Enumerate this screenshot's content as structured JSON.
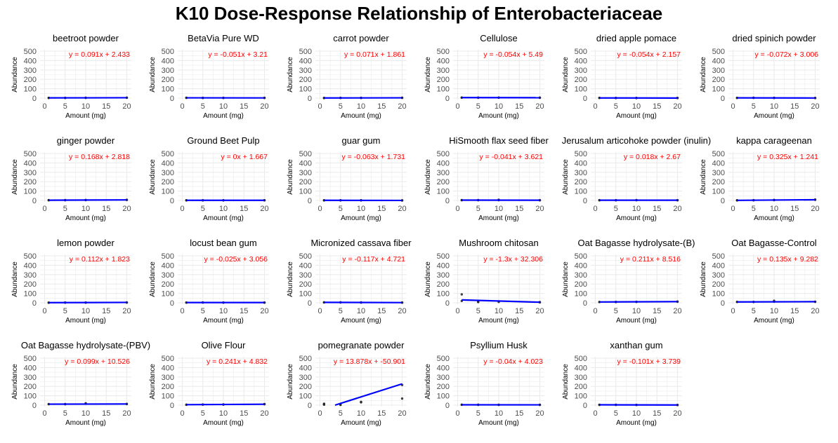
{
  "title": "K10 Dose-Response Relationship of Enterobacteriaceae",
  "colors": {
    "fit_line": "#0000ff",
    "equation": "#ff0000",
    "points": "#222222",
    "grid": "#ebebeb"
  },
  "chart_data": {
    "type": "scatter",
    "layout": "facet-grid",
    "xlabel": "Amount (mg)",
    "ylabel": "Abundance",
    "xlim": [
      0,
      20
    ],
    "ylim": [
      0,
      500
    ],
    "xticks": [
      0,
      5,
      10,
      15,
      20
    ],
    "yticks": [
      0,
      100,
      200,
      300,
      400,
      500
    ],
    "grid": true,
    "legend": "none",
    "facets": [
      {
        "name": "beetroot powder",
        "equation": "y = 0.091x + 2.433",
        "slope": 0.091,
        "intercept": 2.433,
        "points": [
          [
            1,
            2
          ],
          [
            1,
            3
          ],
          [
            5,
            3
          ],
          [
            5,
            2
          ],
          [
            10,
            3
          ],
          [
            10,
            4
          ],
          [
            20,
            4
          ],
          [
            20,
            5
          ]
        ]
      },
      {
        "name": "BetaVia Pure WD",
        "equation": "y = -0.051x + 3.21",
        "slope": -0.051,
        "intercept": 3.21,
        "points": [
          [
            1,
            3
          ],
          [
            1,
            4
          ],
          [
            5,
            3
          ],
          [
            5,
            2
          ],
          [
            10,
            3
          ],
          [
            10,
            2
          ],
          [
            20,
            2
          ],
          [
            20,
            3
          ]
        ]
      },
      {
        "name": "carrot powder",
        "equation": "y = 0.071x + 1.861",
        "slope": 0.071,
        "intercept": 1.861,
        "points": [
          [
            1,
            2
          ],
          [
            1,
            1
          ],
          [
            5,
            2
          ],
          [
            5,
            3
          ],
          [
            10,
            2
          ],
          [
            10,
            3
          ],
          [
            20,
            3
          ],
          [
            20,
            4
          ]
        ]
      },
      {
        "name": "Cellulose",
        "equation": "y = -0.054x + 5.49",
        "slope": -0.054,
        "intercept": 5.49,
        "points": [
          [
            1,
            5
          ],
          [
            1,
            6
          ],
          [
            5,
            6
          ],
          [
            5,
            4
          ],
          [
            10,
            5
          ],
          [
            10,
            6
          ],
          [
            20,
            4
          ],
          [
            20,
            5
          ]
        ]
      },
      {
        "name": "dried apple pomace",
        "equation": "y = -0.054x + 2.157",
        "slope": -0.054,
        "intercept": 2.157,
        "points": [
          [
            1,
            2
          ],
          [
            1,
            3
          ],
          [
            5,
            2
          ],
          [
            5,
            1
          ],
          [
            10,
            2
          ],
          [
            10,
            1
          ],
          [
            20,
            1
          ],
          [
            20,
            2
          ]
        ]
      },
      {
        "name": "dried spinich powder",
        "equation": "y = -0.072x + 3.006",
        "slope": -0.072,
        "intercept": 3.006,
        "points": [
          [
            1,
            3
          ],
          [
            1,
            2
          ],
          [
            5,
            3
          ],
          [
            5,
            4
          ],
          [
            10,
            2
          ],
          [
            10,
            3
          ],
          [
            20,
            2
          ],
          [
            20,
            1
          ]
        ]
      },
      {
        "name": "ginger powder",
        "equation": "y = 0.168x + 2.818",
        "slope": 0.168,
        "intercept": 2.818,
        "points": [
          [
            1,
            2
          ],
          [
            1,
            4
          ],
          [
            5,
            4
          ],
          [
            5,
            3
          ],
          [
            10,
            5
          ],
          [
            10,
            4
          ],
          [
            20,
            6
          ],
          [
            20,
            7
          ]
        ]
      },
      {
        "name": "Ground Beet Pulp",
        "equation": "y = 0x + 1.667",
        "slope": 0,
        "intercept": 1.667,
        "points": [
          [
            1,
            2
          ],
          [
            1,
            1
          ],
          [
            5,
            2
          ],
          [
            5,
            1
          ],
          [
            10,
            2
          ],
          [
            10,
            1
          ],
          [
            20,
            2
          ],
          [
            20,
            2
          ]
        ]
      },
      {
        "name": "guar gum",
        "equation": "y = -0.063x + 1.731",
        "slope": -0.063,
        "intercept": 1.731,
        "points": [
          [
            1,
            2
          ],
          [
            1,
            1
          ],
          [
            5,
            2
          ],
          [
            5,
            1
          ],
          [
            10,
            1
          ],
          [
            10,
            2
          ],
          [
            20,
            0
          ],
          [
            20,
            1
          ]
        ]
      },
      {
        "name": "HiSmooth flax seed fiber",
        "equation": "y = -0.041x + 3.621",
        "slope": -0.041,
        "intercept": 3.621,
        "points": [
          [
            1,
            3
          ],
          [
            1,
            4
          ],
          [
            5,
            3
          ],
          [
            5,
            4
          ],
          [
            10,
            8
          ],
          [
            10,
            3
          ],
          [
            20,
            2
          ],
          [
            20,
            3
          ]
        ]
      },
      {
        "name": "Jerusalum articohoke powder (inulin)",
        "equation": "y = 0.018x + 2.67",
        "slope": 0.018,
        "intercept": 2.67,
        "points": [
          [
            1,
            3
          ],
          [
            1,
            2
          ],
          [
            5,
            3
          ],
          [
            5,
            2
          ],
          [
            10,
            3
          ],
          [
            10,
            4
          ],
          [
            20,
            3
          ],
          [
            20,
            2
          ]
        ]
      },
      {
        "name": "kappa carageenan",
        "equation": "y = 0.325x + 1.241",
        "slope": 0.325,
        "intercept": 1.241,
        "points": [
          [
            1,
            2
          ],
          [
            1,
            1
          ],
          [
            5,
            3
          ],
          [
            5,
            2
          ],
          [
            10,
            4
          ],
          [
            10,
            6
          ],
          [
            20,
            7
          ],
          [
            20,
            10
          ]
        ]
      },
      {
        "name": "lemon powder",
        "equation": "y = 0.112x + 1.823",
        "slope": 0.112,
        "intercept": 1.823,
        "points": [
          [
            1,
            2
          ],
          [
            1,
            1
          ],
          [
            5,
            2
          ],
          [
            5,
            3
          ],
          [
            10,
            3
          ],
          [
            10,
            2
          ],
          [
            20,
            4
          ],
          [
            20,
            3
          ]
        ]
      },
      {
        "name": "locust bean gum",
        "equation": "y = -0.025x + 3.056",
        "slope": -0.025,
        "intercept": 3.056,
        "points": [
          [
            1,
            3
          ],
          [
            1,
            2
          ],
          [
            5,
            3
          ],
          [
            5,
            4
          ],
          [
            10,
            3
          ],
          [
            10,
            2
          ],
          [
            20,
            2
          ],
          [
            20,
            3
          ]
        ]
      },
      {
        "name": "Micronized cassava fiber",
        "equation": "y = -0.117x + 4.721",
        "slope": -0.117,
        "intercept": 4.721,
        "points": [
          [
            1,
            5
          ],
          [
            1,
            4
          ],
          [
            5,
            4
          ],
          [
            5,
            5
          ],
          [
            10,
            3
          ],
          [
            10,
            4
          ],
          [
            20,
            2
          ],
          [
            20,
            3
          ]
        ]
      },
      {
        "name": "Mushroom chitosan",
        "equation": "y = -1.3x + 32.306",
        "slope": -1.3,
        "intercept": 32.306,
        "points": [
          [
            1,
            90
          ],
          [
            1,
            20
          ],
          [
            5,
            8
          ],
          [
            5,
            12
          ],
          [
            10,
            15
          ],
          [
            10,
            10
          ],
          [
            20,
            8
          ],
          [
            20,
            5
          ]
        ]
      },
      {
        "name": "Oat Bagasse hydrolysate-(B)",
        "equation": "y = 0.211x + 8.516",
        "slope": 0.211,
        "intercept": 8.516,
        "points": [
          [
            1,
            8
          ],
          [
            1,
            9
          ],
          [
            5,
            10
          ],
          [
            5,
            8
          ],
          [
            10,
            10
          ],
          [
            10,
            11
          ],
          [
            20,
            12
          ],
          [
            20,
            13
          ]
        ]
      },
      {
        "name": "Oat Bagasse-Control",
        "equation": "y = 0.135x + 9.282",
        "slope": 0.135,
        "intercept": 9.282,
        "points": [
          [
            1,
            9
          ],
          [
            1,
            10
          ],
          [
            5,
            10
          ],
          [
            5,
            9
          ],
          [
            10,
            22
          ],
          [
            10,
            12
          ],
          [
            20,
            11
          ],
          [
            20,
            12
          ]
        ]
      },
      {
        "name": "Oat Bagasse hydrolysate-(PBV)",
        "equation": "y = 0.099x + 10.526",
        "slope": 0.099,
        "intercept": 10.526,
        "points": [
          [
            1,
            10
          ],
          [
            1,
            12
          ],
          [
            5,
            12
          ],
          [
            5,
            10
          ],
          [
            10,
            20
          ],
          [
            10,
            15
          ],
          [
            20,
            12
          ],
          [
            20,
            13
          ]
        ]
      },
      {
        "name": "Olive Flour",
        "equation": "y = 0.241x + 4.832",
        "slope": 0.241,
        "intercept": 4.832,
        "points": [
          [
            1,
            5
          ],
          [
            1,
            4
          ],
          [
            5,
            6
          ],
          [
            5,
            7
          ],
          [
            10,
            8
          ],
          [
            10,
            6
          ],
          [
            20,
            10
          ],
          [
            20,
            12
          ]
        ]
      },
      {
        "name": "pomegranate powder",
        "equation": "y = 13.878x + -50.901",
        "slope": 13.878,
        "intercept": -50.901,
        "points": [
          [
            1,
            10
          ],
          [
            1,
            15
          ],
          [
            1,
            5
          ],
          [
            5,
            5
          ],
          [
            5,
            3
          ],
          [
            10,
            30
          ],
          [
            10,
            35
          ],
          [
            20,
            215
          ],
          [
            20,
            70
          ]
        ]
      },
      {
        "name": "Psyllium Husk",
        "equation": "y = -0.04x + 4.023",
        "slope": -0.04,
        "intercept": 4.023,
        "points": [
          [
            1,
            4
          ],
          [
            1,
            5
          ],
          [
            5,
            5
          ],
          [
            5,
            3
          ],
          [
            10,
            4
          ],
          [
            10,
            3
          ],
          [
            20,
            3
          ],
          [
            20,
            4
          ]
        ]
      },
      {
        "name": "xanthan gum",
        "equation": "y = -0.101x + 3.739",
        "slope": -0.101,
        "intercept": 3.739,
        "points": [
          [
            1,
            4
          ],
          [
            1,
            3
          ],
          [
            5,
            3
          ],
          [
            5,
            4
          ],
          [
            10,
            3
          ],
          [
            10,
            2
          ],
          [
            20,
            2
          ],
          [
            20,
            1
          ]
        ]
      }
    ]
  }
}
